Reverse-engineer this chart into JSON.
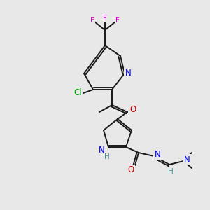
{
  "bg_color": "#e8e8e8",
  "figsize": [
    3.0,
    3.0
  ],
  "dpi": 100,
  "bond_color": "#1a1a1a",
  "bond_lw": 1.4,
  "atom_colors": {
    "N": "#0000ee",
    "O": "#cc0000",
    "F": "#cc00cc",
    "Cl": "#00aa00",
    "H_label": "#4a9090",
    "C": "#1a1a1a"
  },
  "font_size": 8.5,
  "font_size_small": 7.5
}
